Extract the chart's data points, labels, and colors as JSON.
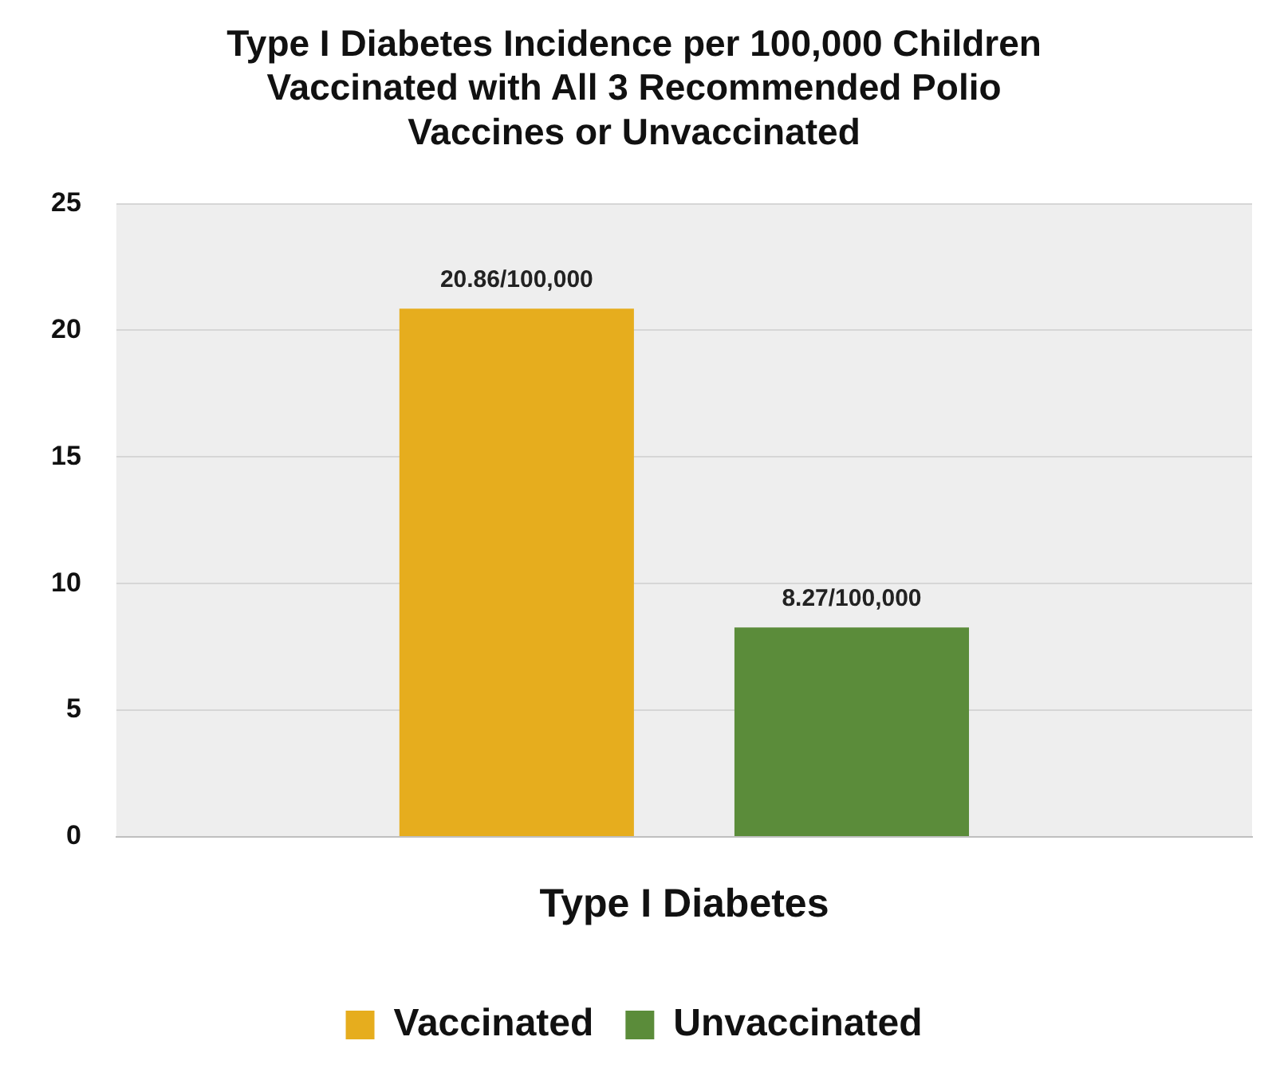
{
  "chart_data": {
    "type": "bar",
    "title": "Type I Diabetes Incidence per 100,000 Children Vaccinated with All 3 Recommended Polio Vaccines or Unvaccinated",
    "categories": [
      "Type I Diabetes"
    ],
    "series": [
      {
        "name": "Vaccinated",
        "color": "#e6ad1e",
        "values": [
          20.86
        ],
        "value_labels": [
          "20.86/100,000"
        ]
      },
      {
        "name": "Unvaccinated",
        "color": "#5b8c3a",
        "values": [
          8.27
        ],
        "value_labels": [
          "8.27/100,000"
        ]
      }
    ],
    "ylim": [
      0,
      25
    ],
    "yticks": [
      0,
      5,
      10,
      15,
      20,
      25
    ],
    "grid": "y",
    "legend": "bottom"
  }
}
